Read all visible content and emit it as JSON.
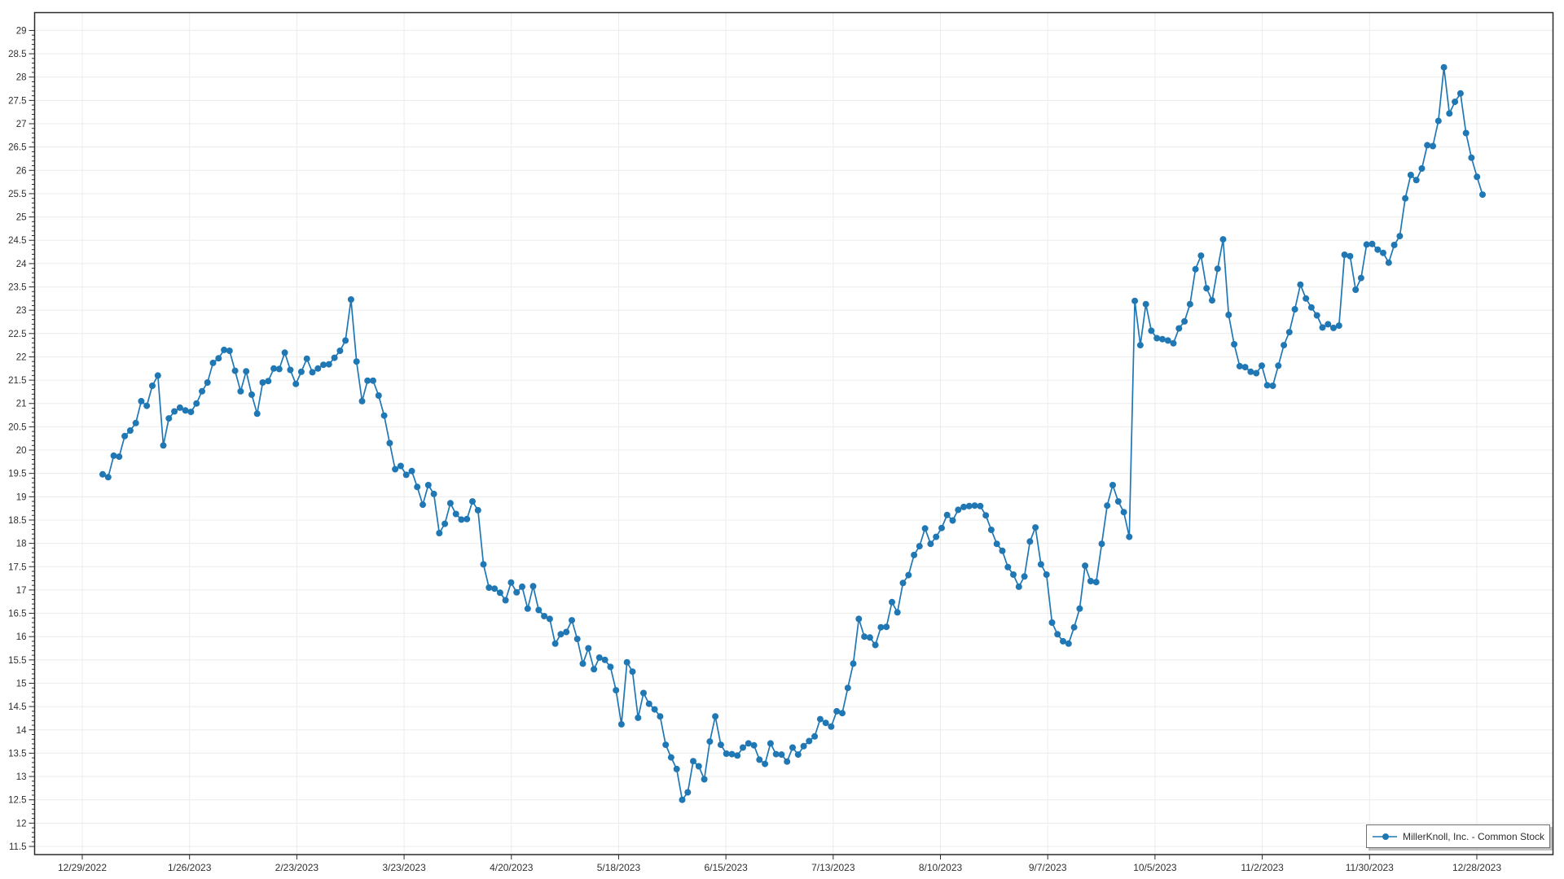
{
  "window": {
    "background": "#ffffff"
  },
  "chart": {
    "title": "",
    "legend": {
      "label": "MillerKnoll, Inc. - Common Stock",
      "position": "bottom-right",
      "marker": "line-dot"
    },
    "colors": {
      "line": "#1f77b4",
      "marker": "#1f77b4",
      "grid": "#ececec",
      "axis": "#2a2a2a",
      "tick_label": "#303030",
      "legend_border": "#6f6f6f",
      "background": "#ffffff"
    },
    "y_axis": {
      "major_step": 0.5,
      "minor_step": 0.1,
      "tick_labels": [
        "29",
        "28.5",
        "28",
        "27.5",
        "27",
        "26.5",
        "26",
        "25.5",
        "25",
        "24.5",
        "24",
        "23.5",
        "23",
        "22.5",
        "22",
        "21.5",
        "21",
        "20.5",
        "20",
        "19.5",
        "19",
        "18.5",
        "18",
        "17.5",
        "17",
        "16.5",
        "16",
        "15.5",
        "15",
        "14.5",
        "14",
        "13.5",
        "13",
        "12.5",
        "12",
        "11.5"
      ]
    },
    "x_axis": {
      "tick_labels": [
        "12/29/2022",
        "1/26/2023",
        "2/23/2023",
        "3/23/2023",
        "4/20/2023",
        "5/18/2023",
        "6/15/2023",
        "7/13/2023",
        "8/10/2023",
        "9/7/2023",
        "10/5/2023",
        "11/2/2023",
        "11/30/2023",
        "12/28/2023"
      ],
      "tick_data_indices": [
        0,
        18,
        37,
        57,
        76,
        96,
        115,
        133,
        153,
        172,
        192,
        212,
        231,
        250
      ]
    }
  },
  "chart_data": {
    "type": "line",
    "title": "",
    "xlabel": "",
    "ylabel": "",
    "ylim": [
      11.5,
      29
    ],
    "grid": true,
    "legend_position": "bottom-right",
    "x_tick_labels_shown": [
      "12/29/2022",
      "1/26/2023",
      "2/23/2023",
      "3/23/2023",
      "4/20/2023",
      "5/18/2023",
      "6/15/2023",
      "7/13/2023",
      "8/10/2023",
      "9/7/2023",
      "10/5/2023",
      "11/2/2023",
      "11/30/2023",
      "12/28/2023"
    ],
    "series": [
      {
        "name": "MillerKnoll, Inc. - Common Stock",
        "color": "#1f77b4",
        "x": [
          "12/29/2022",
          "12/30/2022",
          "1/3/2023",
          "1/4/2023",
          "1/5/2023",
          "1/6/2023",
          "1/9/2023",
          "1/10/2023",
          "1/11/2023",
          "1/12/2023",
          "1/13/2023",
          "1/17/2023",
          "1/18/2023",
          "1/19/2023",
          "1/20/2023",
          "1/23/2023",
          "1/24/2023",
          "1/25/2023",
          "1/26/2023",
          "1/27/2023",
          "1/30/2023",
          "1/31/2023",
          "2/1/2023",
          "2/2/2023",
          "2/3/2023",
          "2/6/2023",
          "2/7/2023",
          "2/8/2023",
          "2/9/2023",
          "2/10/2023",
          "2/13/2023",
          "2/14/2023",
          "2/15/2023",
          "2/16/2023",
          "2/17/2023",
          "2/21/2023",
          "2/22/2023",
          "2/23/2023",
          "2/24/2023",
          "2/27/2023",
          "2/28/2023",
          "3/1/2023",
          "3/2/2023",
          "3/3/2023",
          "3/6/2023",
          "3/7/2023",
          "3/8/2023",
          "3/9/2023",
          "3/10/2023",
          "3/13/2023",
          "3/14/2023",
          "3/15/2023",
          "3/16/2023",
          "3/17/2023",
          "3/20/2023",
          "3/21/2023",
          "3/22/2023",
          "3/23/2023",
          "3/24/2023",
          "3/27/2023",
          "3/28/2023",
          "3/29/2023",
          "3/30/2023",
          "3/31/2023",
          "4/3/2023",
          "4/4/2023",
          "4/5/2023",
          "4/6/2023",
          "4/10/2023",
          "4/11/2023",
          "4/12/2023",
          "4/13/2023",
          "4/14/2023",
          "4/17/2023",
          "4/18/2023",
          "4/19/2023",
          "4/20/2023",
          "4/21/2023",
          "4/24/2023",
          "4/25/2023",
          "4/26/2023",
          "4/27/2023",
          "4/28/2023",
          "5/1/2023",
          "5/2/2023",
          "5/3/2023",
          "5/4/2023",
          "5/5/2023",
          "5/8/2023",
          "5/9/2023",
          "5/10/2023",
          "5/11/2023",
          "5/12/2023",
          "5/15/2023",
          "5/16/2023",
          "5/17/2023",
          "5/18/2023",
          "5/19/2023",
          "5/22/2023",
          "5/23/2023",
          "5/24/2023",
          "5/25/2023",
          "5/26/2023",
          "5/30/2023",
          "5/31/2023",
          "6/1/2023",
          "6/2/2023",
          "6/5/2023",
          "6/6/2023",
          "6/7/2023",
          "6/8/2023",
          "6/9/2023",
          "6/12/2023",
          "6/13/2023",
          "6/14/2023",
          "6/15/2023",
          "6/16/2023",
          "6/20/2023",
          "6/21/2023",
          "6/22/2023",
          "6/23/2023",
          "6/26/2023",
          "6/27/2023",
          "6/28/2023",
          "6/29/2023",
          "6/30/2023",
          "7/3/2023",
          "7/5/2023",
          "7/6/2023",
          "7/7/2023",
          "7/10/2023",
          "7/11/2023",
          "7/12/2023",
          "7/13/2023",
          "7/14/2023",
          "7/17/2023",
          "7/18/2023",
          "7/19/2023",
          "7/20/2023",
          "7/21/2023",
          "7/24/2023",
          "7/25/2023",
          "7/26/2023",
          "7/27/2023",
          "7/28/2023",
          "7/31/2023",
          "8/1/2023",
          "8/2/2023",
          "8/3/2023",
          "8/4/2023",
          "8/7/2023",
          "8/8/2023",
          "8/9/2023",
          "8/10/2023",
          "8/11/2023",
          "8/14/2023",
          "8/15/2023",
          "8/16/2023",
          "8/17/2023",
          "8/18/2023",
          "8/21/2023",
          "8/22/2023",
          "8/23/2023",
          "8/24/2023",
          "8/25/2023",
          "8/28/2023",
          "8/29/2023",
          "8/30/2023",
          "8/31/2023",
          "9/1/2023",
          "9/5/2023",
          "9/6/2023",
          "9/7/2023",
          "9/8/2023",
          "9/11/2023",
          "9/12/2023",
          "9/13/2023",
          "9/14/2023",
          "9/15/2023",
          "9/18/2023",
          "9/19/2023",
          "9/20/2023",
          "9/21/2023",
          "9/22/2023",
          "9/25/2023",
          "9/26/2023",
          "9/27/2023",
          "9/28/2023",
          "9/29/2023",
          "10/2/2023",
          "10/3/2023",
          "10/4/2023",
          "10/5/2023",
          "10/6/2023",
          "10/9/2023",
          "10/10/2023",
          "10/11/2023",
          "10/12/2023",
          "10/13/2023",
          "10/16/2023",
          "10/17/2023",
          "10/18/2023",
          "10/19/2023",
          "10/20/2023",
          "10/23/2023",
          "10/24/2023",
          "10/25/2023",
          "10/26/2023",
          "10/27/2023",
          "10/30/2023",
          "10/31/2023",
          "11/1/2023",
          "11/2/2023",
          "11/3/2023",
          "11/6/2023",
          "11/7/2023",
          "11/8/2023",
          "11/9/2023",
          "11/10/2023",
          "11/13/2023",
          "11/14/2023",
          "11/15/2023",
          "11/16/2023",
          "11/17/2023",
          "11/20/2023",
          "11/21/2023",
          "11/22/2023",
          "11/24/2023",
          "11/27/2023",
          "11/28/2023",
          "11/29/2023",
          "11/30/2023",
          "12/1/2023",
          "12/4/2023",
          "12/5/2023",
          "12/6/2023",
          "12/7/2023",
          "12/8/2023",
          "12/11/2023",
          "12/12/2023",
          "12/13/2023",
          "12/14/2023",
          "12/15/2023",
          "12/18/2023",
          "12/19/2023",
          "12/20/2023",
          "12/21/2023",
          "12/22/2023",
          "12/26/2023",
          "12/27/2023",
          "12/28/2023"
        ],
        "values": [
          19.48,
          19.42,
          19.88,
          19.86,
          20.3,
          20.42,
          20.58,
          21.05,
          20.95,
          21.38,
          21.6,
          20.1,
          20.68,
          20.83,
          20.91,
          20.85,
          20.82,
          21.0,
          21.26,
          21.45,
          21.87,
          21.97,
          22.15,
          22.13,
          21.7,
          21.26,
          21.69,
          21.19,
          20.78,
          21.45,
          21.48,
          21.75,
          21.74,
          22.09,
          21.72,
          21.42,
          21.68,
          21.96,
          21.67,
          21.75,
          21.83,
          21.84,
          21.98,
          22.13,
          22.35,
          23.23,
          21.9,
          21.05,
          21.49,
          21.49,
          21.17,
          20.74,
          20.15,
          19.59,
          19.66,
          19.47,
          19.55,
          19.21,
          18.83,
          19.25,
          19.06,
          18.22,
          18.42,
          18.86,
          18.63,
          18.51,
          18.52,
          18.9,
          18.71,
          17.55,
          17.05,
          17.03,
          16.94,
          16.78,
          17.16,
          16.95,
          17.07,
          16.6,
          17.08,
          16.57,
          16.44,
          16.38,
          15.85,
          16.05,
          16.1,
          16.35,
          15.95,
          15.42,
          15.75,
          15.3,
          15.55,
          15.5,
          15.35,
          14.85,
          14.12,
          15.45,
          15.25,
          14.26,
          14.79,
          14.56,
          14.44,
          14.29,
          13.68,
          13.41,
          13.16,
          12.5,
          12.66,
          13.33,
          13.22,
          12.94,
          13.75,
          14.29,
          13.68,
          13.49,
          13.48,
          13.45,
          13.62,
          13.71,
          13.67,
          13.36,
          13.27,
          13.71,
          13.48,
          13.47,
          13.32,
          13.62,
          13.47,
          13.65,
          13.76,
          13.86,
          14.23,
          14.15,
          14.07,
          14.4,
          14.36,
          14.9,
          15.42,
          16.38,
          16.0,
          15.98,
          15.82,
          16.2,
          16.21,
          16.74,
          16.52,
          17.15,
          17.32,
          17.75,
          17.94,
          18.32,
          17.99,
          18.14,
          18.33,
          18.61,
          18.49,
          18.72,
          18.78,
          18.8,
          18.81,
          18.8,
          18.6,
          18.29,
          17.99,
          17.84,
          17.49,
          17.33,
          17.07,
          17.29,
          18.04,
          18.34,
          17.55,
          17.33,
          16.3,
          16.05,
          15.9,
          15.85,
          16.2,
          16.6,
          17.52,
          17.19,
          17.17,
          17.99,
          18.81,
          19.25,
          18.9,
          18.67,
          18.14,
          23.2,
          22.25,
          23.13,
          22.56,
          22.4,
          22.38,
          22.35,
          22.29,
          22.61,
          22.76,
          23.13,
          23.88,
          24.17,
          23.47,
          23.21,
          23.89,
          24.52,
          22.9,
          22.27,
          21.8,
          21.78,
          21.68,
          21.65,
          21.81,
          21.39,
          21.38,
          21.81,
          22.25,
          22.53,
          23.02,
          23.55,
          23.25,
          23.06,
          22.89,
          22.63,
          22.7,
          22.62,
          22.67,
          24.19,
          24.16,
          23.44,
          23.69,
          24.41,
          24.42,
          24.3,
          24.23,
          24.02,
          24.4,
          24.59,
          25.4,
          25.9,
          25.79,
          26.04,
          26.54,
          26.52,
          27.06,
          28.21,
          27.22,
          27.47,
          27.65,
          26.8,
          26.27,
          25.86,
          25.48
        ]
      }
    ]
  }
}
